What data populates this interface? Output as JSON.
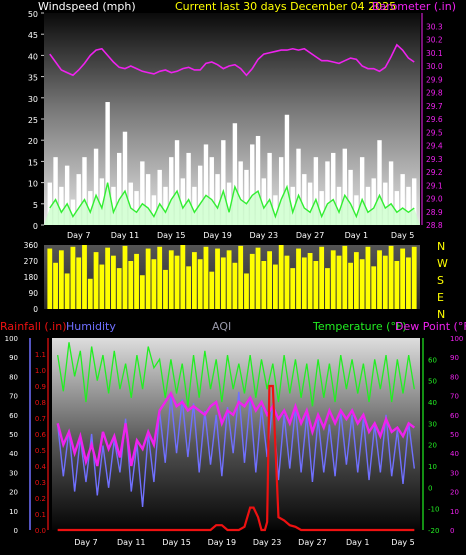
{
  "header": {
    "left_title": "Windspeed (mph)",
    "center_title": "Current last 30 days December 04 2025",
    "right_title": "Barometer (.in)"
  },
  "colors": {
    "wind": "#ffffff",
    "wind_avg": "#33ee33",
    "gust_fill": "#c8ffc8",
    "barometer": "#ee22ee",
    "direction": "#ffff00",
    "rain": "#ee1111",
    "humidity": "#7070ff",
    "temperature": "#22ee22",
    "dewpoint": "#ee22ee",
    "aqi": "#9999aa",
    "axis_text": "#ffffff",
    "grid_text": "#dddddd"
  },
  "chart_data": [
    {
      "type": "line",
      "name": "wind_barometer",
      "x_ticks": [
        "Day 7",
        "Day 11",
        "Day 15",
        "Day 19",
        "Day 23",
        "Day 27",
        "Day 1",
        "Day 5"
      ],
      "x_tick_days": [
        3,
        7,
        11,
        15,
        19,
        23,
        27,
        31
      ],
      "xlim": [
        0,
        32.5
      ],
      "ylabel_left": "Windspeed (mph)",
      "ylim_left": [
        0,
        50
      ],
      "yticks_left": [
        0,
        5,
        10,
        15,
        20,
        25,
        30,
        35,
        40,
        45,
        50
      ],
      "ylabel_right": "Barometer (.in)",
      "ylim_right": [
        28.8,
        30.4
      ],
      "yticks_right": [
        28.8,
        28.9,
        29.0,
        29.1,
        29.2,
        29.3,
        29.4,
        29.5,
        29.6,
        29.7,
        29.8,
        29.9,
        30.0,
        30.1,
        30.2,
        30.3
      ],
      "series": [
        {
          "key": "wind_gust",
          "days": [
            0.5,
            1.0,
            1.5,
            2.0,
            2.5,
            3.0,
            3.5,
            4.0,
            4.5,
            5.0,
            5.5,
            6.0,
            6.5,
            7.0,
            7.5,
            8.0,
            8.5,
            9.0,
            9.5,
            10.0,
            10.5,
            11.0,
            11.5,
            12.0,
            12.5,
            13.0,
            13.5,
            14.0,
            14.5,
            15.0,
            15.5,
            16.0,
            16.5,
            17.0,
            17.5,
            18.0,
            18.5,
            19.0,
            19.5,
            20.0,
            20.5,
            21.0,
            21.5,
            22.0,
            22.5,
            23.0,
            23.5,
            24.0,
            24.5,
            25.0,
            25.5,
            26.0,
            26.5,
            27.0,
            27.5,
            28.0,
            28.5,
            29.0,
            29.5,
            30.0,
            30.5,
            31.0,
            31.5,
            32.0
          ],
          "values": [
            10,
            16,
            9,
            14,
            6,
            12,
            16,
            8,
            18,
            11,
            29,
            9,
            17,
            22,
            10,
            8,
            15,
            12,
            7,
            13,
            9,
            16,
            20,
            11,
            17,
            9,
            14,
            19,
            16,
            12,
            20,
            10,
            24,
            15,
            13,
            19,
            21,
            11,
            17,
            7,
            16,
            26,
            9,
            18,
            12,
            10,
            16,
            8,
            15,
            17,
            9,
            18,
            13,
            7,
            16,
            9,
            11,
            20,
            10,
            15,
            8,
            12,
            9,
            11
          ]
        },
        {
          "key": "wind_avg",
          "days": [
            0.5,
            1.0,
            1.5,
            2.0,
            2.5,
            3.0,
            3.5,
            4.0,
            4.5,
            5.0,
            5.5,
            6.0,
            6.5,
            7.0,
            7.5,
            8.0,
            8.5,
            9.0,
            9.5,
            10.0,
            10.5,
            11.0,
            11.5,
            12.0,
            12.5,
            13.0,
            13.5,
            14.0,
            14.5,
            15.0,
            15.5,
            16.0,
            16.5,
            17.0,
            17.5,
            18.0,
            18.5,
            19.0,
            19.5,
            20.0,
            20.5,
            21.0,
            21.5,
            22.0,
            22.5,
            23.0,
            23.5,
            24.0,
            24.5,
            25.0,
            25.5,
            26.0,
            26.5,
            27.0,
            27.5,
            28.0,
            28.5,
            29.0,
            29.5,
            30.0,
            30.5,
            31.0,
            31.5,
            32.0
          ],
          "values": [
            4,
            6,
            3,
            5,
            2,
            4,
            6,
            3,
            7,
            4,
            10,
            3,
            6,
            8,
            4,
            3,
            5,
            4,
            2,
            5,
            3,
            6,
            8,
            4,
            6,
            3,
            5,
            7,
            6,
            4,
            8,
            3,
            9,
            6,
            5,
            7,
            8,
            4,
            6,
            2,
            6,
            9,
            3,
            7,
            4,
            3,
            6,
            2,
            5,
            6,
            3,
            7,
            5,
            2,
            6,
            3,
            4,
            7,
            4,
            5,
            3,
            4,
            3,
            4
          ]
        },
        {
          "key": "barometer",
          "days": [
            0.5,
            1.0,
            1.5,
            2.0,
            2.5,
            3.0,
            3.5,
            4.0,
            4.5,
            5.0,
            5.5,
            6.0,
            6.5,
            7.0,
            7.5,
            8.0,
            8.5,
            9.0,
            9.5,
            10.0,
            10.5,
            11.0,
            11.5,
            12.0,
            12.5,
            13.0,
            13.5,
            14.0,
            14.5,
            15.0,
            15.5,
            16.0,
            16.5,
            17.0,
            17.5,
            18.0,
            18.5,
            19.0,
            19.5,
            20.0,
            20.5,
            21.0,
            21.5,
            22.0,
            22.5,
            23.0,
            23.5,
            24.0,
            24.5,
            25.0,
            25.5,
            26.0,
            26.5,
            27.0,
            27.5,
            28.0,
            28.5,
            29.0,
            29.5,
            30.0,
            30.5,
            31.0,
            31.5,
            32.0
          ],
          "values": [
            30.09,
            30.03,
            29.97,
            29.95,
            29.93,
            29.97,
            30.02,
            30.08,
            30.12,
            30.13,
            30.08,
            30.03,
            29.99,
            29.98,
            30.0,
            29.98,
            29.96,
            29.95,
            29.94,
            29.96,
            29.97,
            29.95,
            29.96,
            29.98,
            29.99,
            29.97,
            29.97,
            30.02,
            30.03,
            30.01,
            29.98,
            30.0,
            30.01,
            29.98,
            29.93,
            29.98,
            30.05,
            30.09,
            30.1,
            30.11,
            30.12,
            30.12,
            30.13,
            30.12,
            30.13,
            30.1,
            30.07,
            30.04,
            30.04,
            30.03,
            30.02,
            30.04,
            30.06,
            30.05,
            30.0,
            29.98,
            29.98,
            29.96,
            29.99,
            30.07,
            30.16,
            30.12,
            30.06,
            30.03
          ]
        }
      ]
    },
    {
      "type": "bar",
      "name": "wind_direction",
      "ylabel_right": [
        "N",
        "W",
        "S",
        "E",
        "N"
      ],
      "ylim": [
        0,
        360
      ],
      "yticks": [
        0,
        90,
        180,
        270,
        360
      ],
      "series": [
        {
          "key": "direction",
          "days": [
            0.5,
            1.0,
            1.5,
            2.0,
            2.5,
            3.0,
            3.5,
            4.0,
            4.5,
            5.0,
            5.5,
            6.0,
            6.5,
            7.0,
            7.5,
            8.0,
            8.5,
            9.0,
            9.5,
            10.0,
            10.5,
            11.0,
            11.5,
            12.0,
            12.5,
            13.0,
            13.5,
            14.0,
            14.5,
            15.0,
            15.5,
            16.0,
            16.5,
            17.0,
            17.5,
            18.0,
            18.5,
            19.0,
            19.5,
            20.0,
            20.5,
            21.0,
            21.5,
            22.0,
            22.5,
            23.0,
            23.5,
            24.0,
            24.5,
            25.0,
            25.5,
            26.0,
            26.5,
            27.0,
            27.5,
            28.0,
            28.5,
            29.0,
            29.5,
            30.0,
            30.5,
            31.0,
            31.5,
            32.0
          ],
          "values": [
            340,
            260,
            330,
            200,
            350,
            290,
            360,
            170,
            320,
            250,
            345,
            300,
            230,
            355,
            270,
            310,
            190,
            340,
            280,
            350,
            220,
            330,
            300,
            360,
            240,
            320,
            280,
            350,
            210,
            340,
            290,
            330,
            260,
            355,
            200,
            310,
            345,
            270,
            325,
            250,
            360,
            300,
            230,
            340,
            290,
            315,
            270,
            350,
            230,
            330,
            300,
            355,
            260,
            320,
            280,
            350,
            240,
            330,
            300,
            355,
            270,
            340,
            290,
            350
          ]
        }
      ]
    },
    {
      "type": "line",
      "name": "rain_humidity_temperature",
      "aqi_label": "AQI",
      "ylabel_left_outer": "Rainfall (.in)",
      "ylabel_left_inner": "Humidity",
      "ylabel_right": "Temperature (°F)",
      "ylabel_right2": "Dew Point (°F)",
      "ylim_rain": [
        0,
        1.2
      ],
      "yticks_rain": [
        0,
        0.1,
        0.2,
        0.3,
        0.4,
        0.5,
        0.6,
        0.7,
        0.8,
        0.9,
        1.0,
        1.1
      ],
      "ylim_humidity": [
        0,
        100
      ],
      "yticks_humidity": [
        0,
        10,
        20,
        30,
        40,
        50,
        60,
        70,
        80,
        90,
        100
      ],
      "ylim_temp": [
        -20,
        70
      ],
      "yticks_temp": [
        -20,
        -10,
        0,
        10,
        20,
        30,
        40,
        50,
        60
      ],
      "series": [
        {
          "key": "rain",
          "days": [
            0.5,
            14.0,
            14.5,
            15.0,
            15.5,
            16.5,
            17.0,
            17.5,
            17.8,
            18.2,
            18.5,
            18.8,
            19.0,
            19.2,
            19.5,
            20.0,
            20.5,
            21.0,
            21.5,
            22.0,
            32.0
          ],
          "values": [
            0.0,
            0.0,
            0.03,
            0.03,
            0.0,
            0.0,
            0.02,
            0.14,
            0.14,
            0.08,
            0.0,
            0.0,
            0.05,
            0.9,
            0.9,
            0.08,
            0.06,
            0.03,
            0.02,
            0.0,
            0.0
          ]
        },
        {
          "key": "humidity",
          "days": [
            0.5,
            1.0,
            1.5,
            2.0,
            2.5,
            3.0,
            3.5,
            4.0,
            4.5,
            5.0,
            5.5,
            6.0,
            6.5,
            7.0,
            7.5,
            8.0,
            8.5,
            9.0,
            9.5,
            10.0,
            10.5,
            11.0,
            11.5,
            12.0,
            12.5,
            13.0,
            13.5,
            14.0,
            14.5,
            15.0,
            15.5,
            16.0,
            16.5,
            17.0,
            17.5,
            18.0,
            18.5,
            19.0,
            19.5,
            20.0,
            20.5,
            21.0,
            21.5,
            22.0,
            22.5,
            23.0,
            23.5,
            24.0,
            24.5,
            25.0,
            25.5,
            26.0,
            26.5,
            27.0,
            27.5,
            28.0,
            28.5,
            29.0,
            29.5,
            30.0,
            30.5,
            31.0,
            31.5,
            32.0
          ],
          "values": [
            55,
            28,
            52,
            20,
            48,
            25,
            50,
            18,
            44,
            22,
            47,
            30,
            58,
            20,
            45,
            12,
            50,
            25,
            62,
            35,
            70,
            40,
            68,
            38,
            66,
            30,
            62,
            34,
            60,
            28,
            64,
            40,
            72,
            35,
            68,
            30,
            64,
            38,
            66,
            26,
            60,
            32,
            64,
            30,
            60,
            25,
            58,
            30,
            55,
            28,
            62,
            34,
            60,
            30,
            58,
            26,
            55,
            30,
            60,
            28,
            52,
            24,
            56,
            32
          ]
        },
        {
          "key": "temperature",
          "days": [
            0.5,
            1.0,
            1.5,
            2.0,
            2.5,
            3.0,
            3.5,
            4.0,
            4.5,
            5.0,
            5.5,
            6.0,
            6.5,
            7.0,
            7.5,
            8.0,
            8.5,
            9.0,
            9.5,
            10.0,
            10.5,
            11.0,
            11.5,
            12.0,
            12.5,
            13.0,
            13.5,
            14.0,
            14.5,
            15.0,
            15.5,
            16.0,
            16.5,
            17.0,
            17.5,
            18.0,
            18.5,
            19.0,
            19.5,
            20.0,
            20.5,
            21.0,
            21.5,
            22.0,
            22.5,
            23.0,
            23.5,
            24.0,
            24.5,
            25.0,
            25.5,
            26.0,
            26.5,
            27.0,
            27.5,
            28.0,
            28.5,
            29.0,
            29.5,
            30.0,
            30.5,
            31.0,
            31.5,
            32.0
          ],
          "values": [
            62,
            45,
            68,
            52,
            64,
            40,
            66,
            50,
            62,
            44,
            64,
            46,
            58,
            42,
            62,
            46,
            66,
            56,
            60,
            42,
            60,
            44,
            58,
            38,
            62,
            42,
            64,
            46,
            60,
            40,
            62,
            46,
            58,
            44,
            62,
            42,
            60,
            46,
            58,
            40,
            62,
            44,
            60,
            42,
            58,
            38,
            60,
            42,
            58,
            40,
            62,
            46,
            60,
            44,
            58,
            40,
            60,
            46,
            62,
            40,
            60,
            44,
            62,
            46
          ]
        },
        {
          "key": "dewpoint",
          "days": [
            0.5,
            1.0,
            1.5,
            2.0,
            2.5,
            3.0,
            3.5,
            4.0,
            4.5,
            5.0,
            5.5,
            6.0,
            6.5,
            7.0,
            7.5,
            8.0,
            8.5,
            9.0,
            9.5,
            10.0,
            10.5,
            11.0,
            11.5,
            12.0,
            12.5,
            13.0,
            13.5,
            14.0,
            14.5,
            15.0,
            15.5,
            16.0,
            16.5,
            17.0,
            17.5,
            18.0,
            18.5,
            19.0,
            19.5,
            20.0,
            20.5,
            21.0,
            21.5,
            22.0,
            22.5,
            23.0,
            23.5,
            24.0,
            24.5,
            25.0,
            25.5,
            26.0,
            26.5,
            27.0,
            27.5,
            28.0,
            28.5,
            29.0,
            29.5,
            30.0,
            30.5,
            31.0,
            31.5,
            32.0
          ],
          "values": [
            30,
            20,
            26,
            16,
            24,
            12,
            20,
            10,
            26,
            18,
            24,
            14,
            30,
            10,
            22,
            18,
            26,
            20,
            36,
            40,
            44,
            38,
            40,
            36,
            38,
            36,
            34,
            38,
            40,
            30,
            36,
            34,
            40,
            38,
            42,
            36,
            40,
            34,
            38,
            32,
            36,
            30,
            38,
            30,
            36,
            26,
            34,
            28,
            36,
            30,
            36,
            32,
            36,
            30,
            34,
            26,
            30,
            24,
            32,
            26,
            28,
            24,
            30,
            28
          ]
        }
      ]
    }
  ],
  "x_axis_ticks": [
    "Day 7",
    "Day 11",
    "Day 15",
    "Day 19",
    "Day 23",
    "Day 27",
    "Day 1",
    "Day 5"
  ],
  "compass": [
    "N",
    "W",
    "S",
    "E",
    "N"
  ]
}
